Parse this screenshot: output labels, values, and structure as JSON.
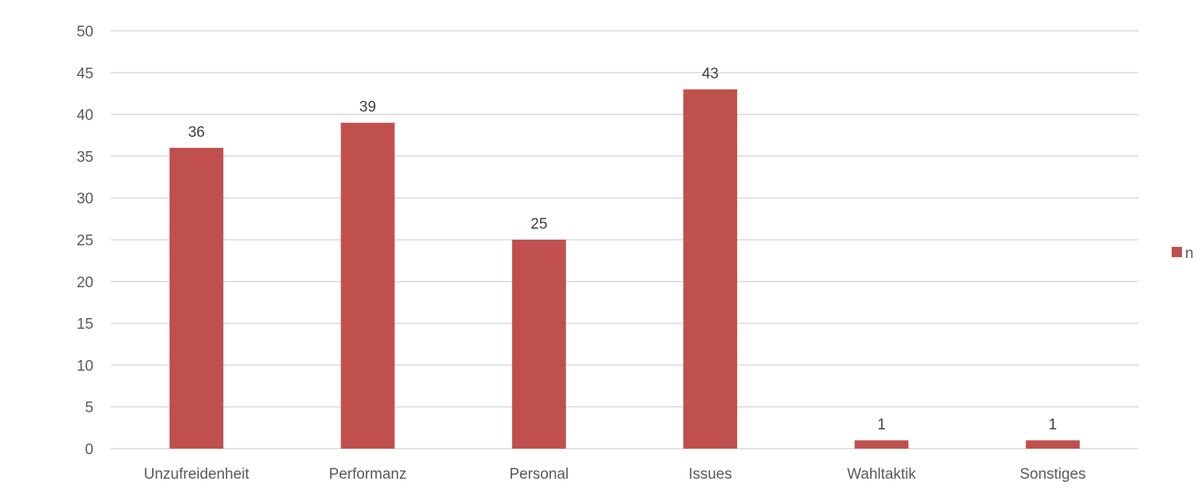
{
  "chart_data": {
    "type": "bar",
    "categories": [
      "Unzufreidenheit",
      "Performanz",
      "Personal",
      "Issues",
      "Wahltaktik",
      "Sonstiges"
    ],
    "series": [
      {
        "name": "n",
        "values": [
          36,
          39,
          25,
          43,
          1,
          1
        ],
        "color": "#c0504d"
      }
    ],
    "ylim": [
      0,
      50
    ],
    "yticks": [
      0,
      5,
      10,
      15,
      20,
      25,
      30,
      35,
      40,
      45,
      50
    ],
    "grid": true,
    "legend_position": "right",
    "title": "",
    "xlabel": "",
    "ylabel": ""
  }
}
